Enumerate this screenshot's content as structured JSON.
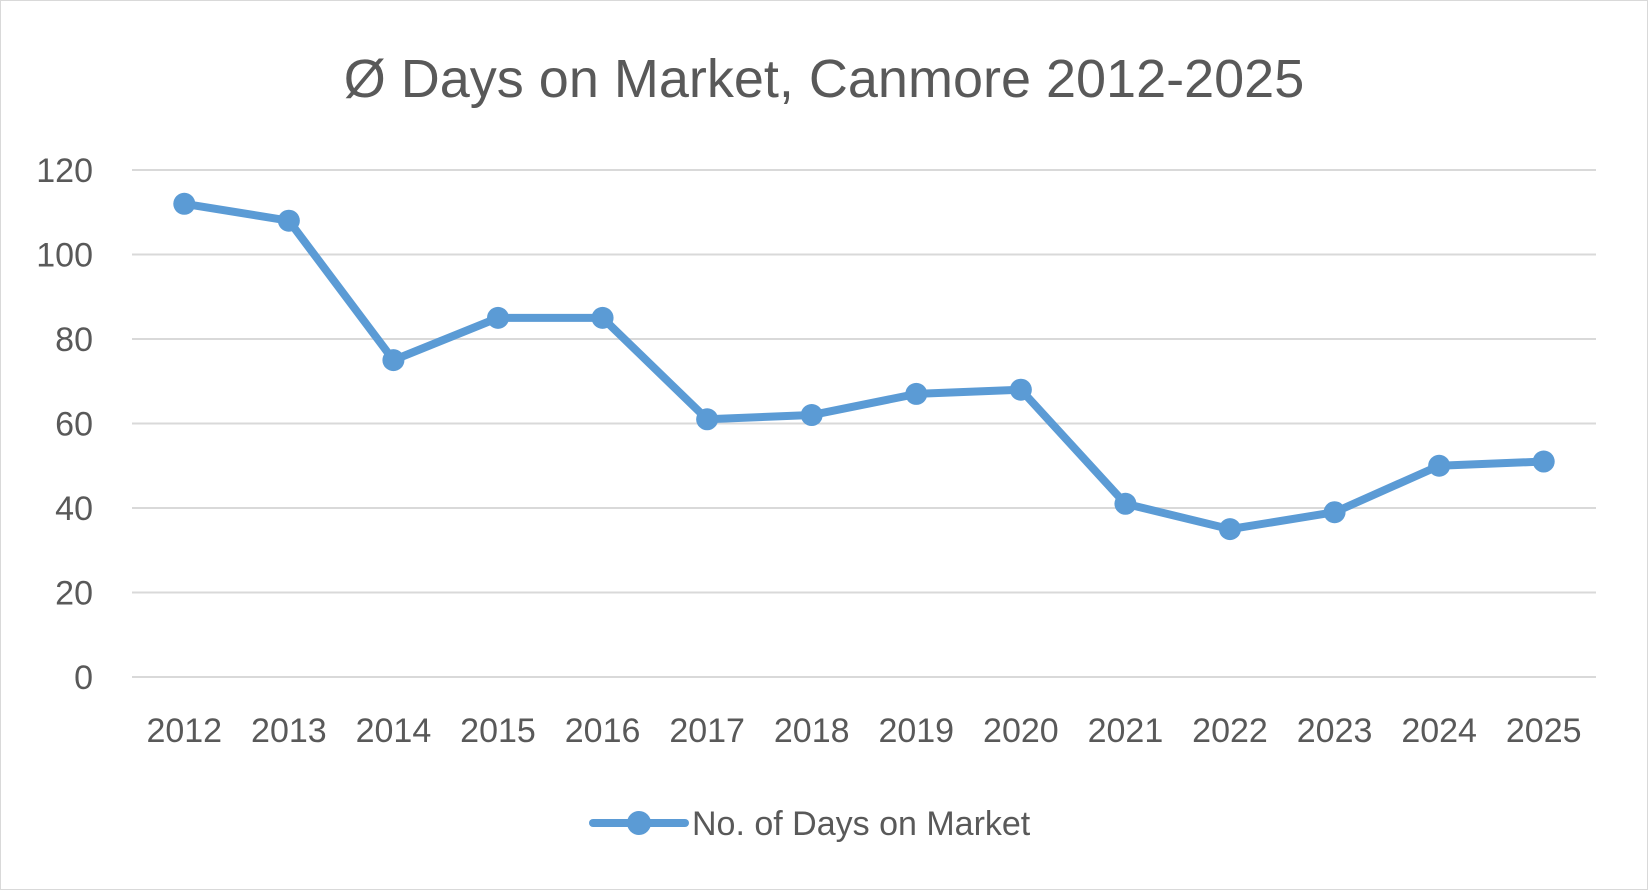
{
  "chart_data": {
    "type": "line",
    "title": "Ø Days on Market, Canmore 2012-2025",
    "xlabel": "",
    "ylabel": "",
    "categories": [
      "2012",
      "2013",
      "2014",
      "2015",
      "2016",
      "2017",
      "2018",
      "2019",
      "2020",
      "2021",
      "2022",
      "2023",
      "2024",
      "2025"
    ],
    "series": [
      {
        "name": "No. of Days on Market",
        "values": [
          112,
          108,
          75,
          85,
          85,
          61,
          62,
          67,
          68,
          41,
          35,
          39,
          50,
          51
        ],
        "color": "#5b9bd5"
      }
    ],
    "ylim": [
      0,
      120
    ],
    "yticks": [
      "0",
      "20",
      "40",
      "60",
      "80",
      "100",
      "120"
    ],
    "grid": true,
    "gridColor": "#d9d9d9",
    "legend": "bottom"
  }
}
